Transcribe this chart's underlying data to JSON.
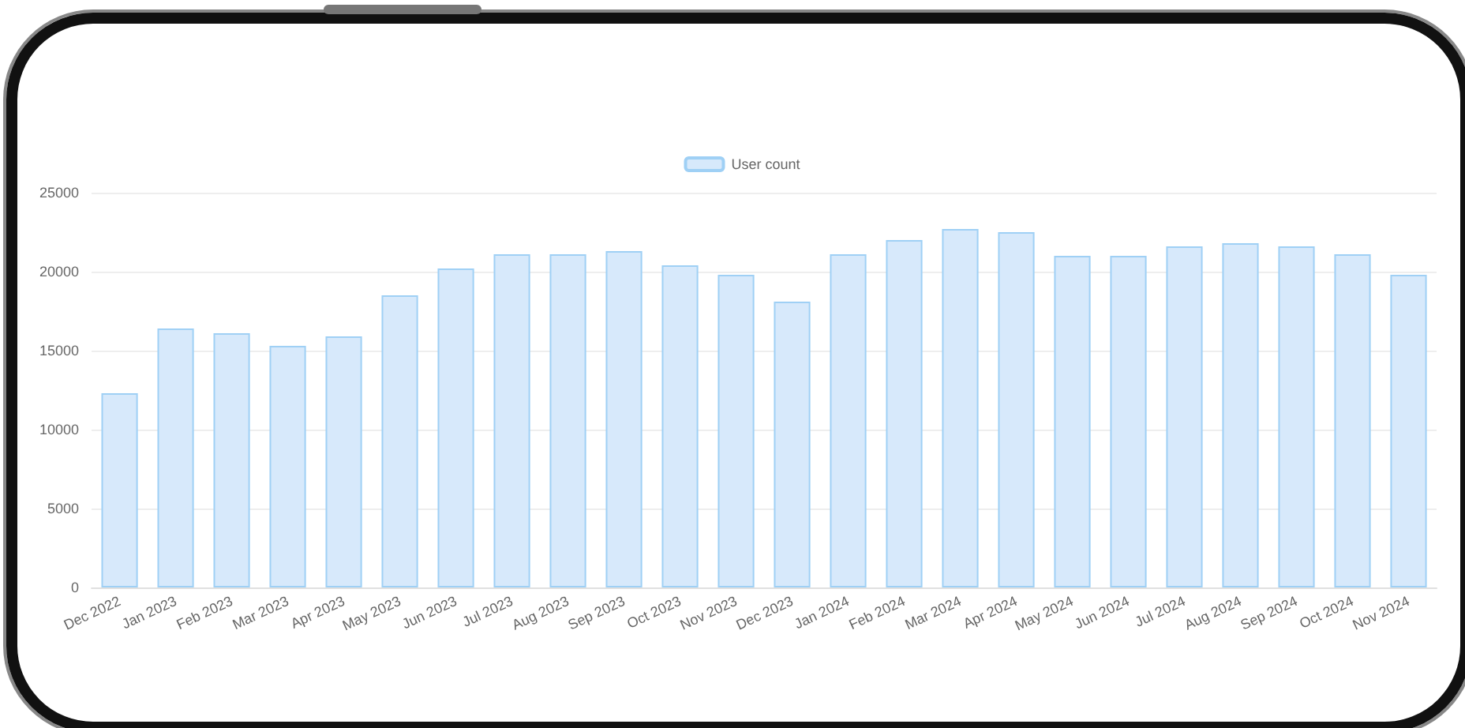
{
  "chart_data": {
    "type": "bar",
    "categories": [
      "Dec 2022",
      "Jan 2023",
      "Feb 2023",
      "Mar 2023",
      "Apr 2023",
      "May 2023",
      "Jun 2023",
      "Jul 2023",
      "Aug 2023",
      "Sep 2023",
      "Oct 2023",
      "Nov 2023",
      "Dec 2023",
      "Jan 2024",
      "Feb 2024",
      "Mar 2024",
      "Apr 2024",
      "May 2024",
      "Jun 2024",
      "Jul 2024",
      "Aug 2024",
      "Sep 2024",
      "Oct 2024",
      "Nov 2024"
    ],
    "series": [
      {
        "name": "User count",
        "color": "#d7e9fb",
        "values": [
          12300,
          16400,
          16100,
          15300,
          15900,
          18500,
          20200,
          21100,
          21100,
          21300,
          20400,
          19800,
          18100,
          21100,
          22000,
          22700,
          22500,
          21000,
          21000,
          21600,
          21800,
          21600,
          21100,
          19800
        ]
      }
    ],
    "ylim": [
      0,
      25000
    ],
    "yticks": [
      0,
      5000,
      10000,
      15000,
      20000,
      25000
    ],
    "grid": "y",
    "legend": "top"
  }
}
